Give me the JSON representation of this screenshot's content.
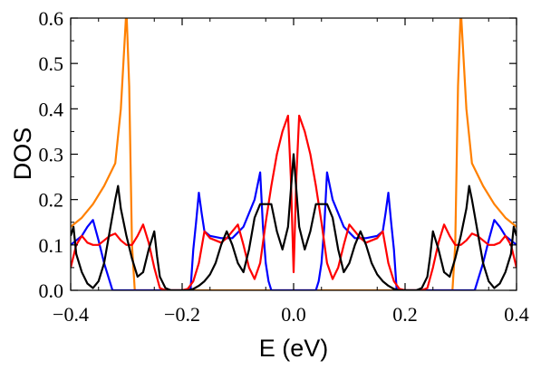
{
  "chart_data": {
    "type": "line",
    "xlabel": "E (eV)",
    "ylabel": "DOS",
    "xlim": [
      -0.4,
      0.4
    ],
    "ylim": [
      0.0,
      0.6
    ],
    "x_ticks": [
      -0.4,
      -0.2,
      0.0,
      0.2,
      0.4
    ],
    "x_tick_labels": [
      "−0.4",
      "−0.2",
      "0.0",
      "0.2",
      "0.4"
    ],
    "y_ticks": [
      0.0,
      0.1,
      0.2,
      0.3,
      0.4,
      0.5,
      0.6
    ],
    "y_tick_labels": [
      "0.0",
      "0.1",
      "0.2",
      "0.3",
      "0.4",
      "0.5",
      "0.6"
    ],
    "grid": false,
    "legend": "none",
    "series": [
      {
        "color": "#ff8000",
        "points": [
          [
            -0.4,
            0.14
          ],
          [
            -0.38,
            0.16
          ],
          [
            -0.36,
            0.19
          ],
          [
            -0.34,
            0.23
          ],
          [
            -0.32,
            0.28
          ],
          [
            -0.31,
            0.4
          ],
          [
            -0.3,
            0.62
          ],
          [
            -0.295,
            0.45
          ],
          [
            -0.29,
            0.1
          ],
          [
            -0.285,
            0.0
          ],
          [
            0.285,
            0.0
          ],
          [
            0.29,
            0.1
          ],
          [
            0.295,
            0.45
          ],
          [
            0.3,
            0.62
          ],
          [
            0.31,
            0.4
          ],
          [
            0.32,
            0.28
          ],
          [
            0.34,
            0.23
          ],
          [
            0.36,
            0.19
          ],
          [
            0.38,
            0.16
          ],
          [
            0.4,
            0.14
          ]
        ]
      },
      {
        "color": "#0000ff",
        "points": [
          [
            -0.4,
            0.1
          ],
          [
            -0.39,
            0.11
          ],
          [
            -0.38,
            0.12
          ],
          [
            -0.37,
            0.14
          ],
          [
            -0.36,
            0.155
          ],
          [
            -0.35,
            0.11
          ],
          [
            -0.34,
            0.06
          ],
          [
            -0.33,
            0.02
          ],
          [
            -0.325,
            0.0
          ],
          [
            -0.185,
            0.0
          ],
          [
            -0.18,
            0.09
          ],
          [
            -0.175,
            0.15
          ],
          [
            -0.17,
            0.215
          ],
          [
            -0.165,
            0.17
          ],
          [
            -0.16,
            0.13
          ],
          [
            -0.15,
            0.12
          ],
          [
            -0.13,
            0.115
          ],
          [
            -0.11,
            0.115
          ],
          [
            -0.09,
            0.14
          ],
          [
            -0.07,
            0.2
          ],
          [
            -0.06,
            0.26
          ],
          [
            -0.055,
            0.14
          ],
          [
            -0.05,
            0.06
          ],
          [
            -0.045,
            0.02
          ],
          [
            -0.04,
            0.0
          ],
          [
            0.04,
            0.0
          ],
          [
            0.045,
            0.02
          ],
          [
            0.05,
            0.06
          ],
          [
            0.055,
            0.14
          ],
          [
            0.06,
            0.26
          ],
          [
            0.07,
            0.2
          ],
          [
            0.09,
            0.14
          ],
          [
            0.11,
            0.115
          ],
          [
            0.13,
            0.115
          ],
          [
            0.15,
            0.12
          ],
          [
            0.16,
            0.13
          ],
          [
            0.165,
            0.17
          ],
          [
            0.17,
            0.215
          ],
          [
            0.175,
            0.15
          ],
          [
            0.18,
            0.09
          ],
          [
            0.185,
            0.0
          ],
          [
            0.325,
            0.0
          ],
          [
            0.33,
            0.02
          ],
          [
            0.34,
            0.06
          ],
          [
            0.35,
            0.11
          ],
          [
            0.36,
            0.155
          ],
          [
            0.37,
            0.14
          ],
          [
            0.38,
            0.12
          ],
          [
            0.39,
            0.11
          ],
          [
            0.4,
            0.1
          ]
        ]
      },
      {
        "color": "#ff0000",
        "points": [
          [
            -0.4,
            0.05
          ],
          [
            -0.39,
            0.1
          ],
          [
            -0.38,
            0.12
          ],
          [
            -0.37,
            0.105
          ],
          [
            -0.36,
            0.1
          ],
          [
            -0.35,
            0.1
          ],
          [
            -0.34,
            0.11
          ],
          [
            -0.33,
            0.12
          ],
          [
            -0.32,
            0.125
          ],
          [
            -0.31,
            0.11
          ],
          [
            -0.3,
            0.1
          ],
          [
            -0.29,
            0.1
          ],
          [
            -0.28,
            0.12
          ],
          [
            -0.27,
            0.145
          ],
          [
            -0.26,
            0.105
          ],
          [
            -0.25,
            0.05
          ],
          [
            -0.24,
            0.005
          ],
          [
            -0.23,
            0.0
          ],
          [
            -0.2,
            0.0
          ],
          [
            -0.19,
            0.003
          ],
          [
            -0.18,
            0.02
          ],
          [
            -0.17,
            0.06
          ],
          [
            -0.16,
            0.13
          ],
          [
            -0.15,
            0.115
          ],
          [
            -0.14,
            0.11
          ],
          [
            -0.13,
            0.105
          ],
          [
            -0.12,
            0.115
          ],
          [
            -0.11,
            0.13
          ],
          [
            -0.1,
            0.145
          ],
          [
            -0.09,
            0.1
          ],
          [
            -0.08,
            0.05
          ],
          [
            -0.07,
            0.025
          ],
          [
            -0.06,
            0.06
          ],
          [
            -0.05,
            0.15
          ],
          [
            -0.04,
            0.23
          ],
          [
            -0.03,
            0.3
          ],
          [
            -0.02,
            0.35
          ],
          [
            -0.01,
            0.385
          ],
          [
            -0.005,
            0.25
          ],
          [
            0.0,
            0.04
          ],
          [
            0.005,
            0.25
          ],
          [
            0.01,
            0.385
          ],
          [
            0.02,
            0.35
          ],
          [
            0.03,
            0.3
          ],
          [
            0.04,
            0.23
          ],
          [
            0.05,
            0.15
          ],
          [
            0.06,
            0.06
          ],
          [
            0.07,
            0.025
          ],
          [
            0.08,
            0.05
          ],
          [
            0.09,
            0.1
          ],
          [
            0.1,
            0.145
          ],
          [
            0.11,
            0.13
          ],
          [
            0.12,
            0.115
          ],
          [
            0.13,
            0.105
          ],
          [
            0.14,
            0.11
          ],
          [
            0.15,
            0.115
          ],
          [
            0.16,
            0.13
          ],
          [
            0.17,
            0.06
          ],
          [
            0.18,
            0.02
          ],
          [
            0.19,
            0.003
          ],
          [
            0.2,
            0.0
          ],
          [
            0.23,
            0.0
          ],
          [
            0.24,
            0.005
          ],
          [
            0.25,
            0.05
          ],
          [
            0.26,
            0.105
          ],
          [
            0.27,
            0.145
          ],
          [
            0.28,
            0.12
          ],
          [
            0.29,
            0.1
          ],
          [
            0.3,
            0.1
          ],
          [
            0.31,
            0.11
          ],
          [
            0.32,
            0.125
          ],
          [
            0.33,
            0.12
          ],
          [
            0.34,
            0.11
          ],
          [
            0.35,
            0.1
          ],
          [
            0.36,
            0.1
          ],
          [
            0.37,
            0.105
          ],
          [
            0.38,
            0.12
          ],
          [
            0.39,
            0.1
          ],
          [
            0.4,
            0.05
          ]
        ]
      },
      {
        "color": "#000000",
        "points": [
          [
            -0.4,
            0.12
          ],
          [
            -0.395,
            0.14
          ],
          [
            -0.39,
            0.08
          ],
          [
            -0.38,
            0.04
          ],
          [
            -0.37,
            0.015
          ],
          [
            -0.36,
            0.005
          ],
          [
            -0.35,
            0.02
          ],
          [
            -0.34,
            0.06
          ],
          [
            -0.33,
            0.13
          ],
          [
            -0.32,
            0.2
          ],
          [
            -0.315,
            0.23
          ],
          [
            -0.31,
            0.18
          ],
          [
            -0.3,
            0.12
          ],
          [
            -0.29,
            0.07
          ],
          [
            -0.28,
            0.03
          ],
          [
            -0.27,
            0.04
          ],
          [
            -0.26,
            0.09
          ],
          [
            -0.25,
            0.13
          ],
          [
            -0.245,
            0.075
          ],
          [
            -0.24,
            0.03
          ],
          [
            -0.23,
            0.005
          ],
          [
            -0.22,
            0.0
          ],
          [
            -0.19,
            0.0
          ],
          [
            -0.18,
            0.003
          ],
          [
            -0.17,
            0.01
          ],
          [
            -0.16,
            0.02
          ],
          [
            -0.15,
            0.035
          ],
          [
            -0.14,
            0.06
          ],
          [
            -0.13,
            0.1
          ],
          [
            -0.12,
            0.13
          ],
          [
            -0.11,
            0.1
          ],
          [
            -0.1,
            0.06
          ],
          [
            -0.09,
            0.04
          ],
          [
            -0.08,
            0.09
          ],
          [
            -0.07,
            0.16
          ],
          [
            -0.06,
            0.19
          ],
          [
            -0.05,
            0.19
          ],
          [
            -0.04,
            0.19
          ],
          [
            -0.03,
            0.13
          ],
          [
            -0.02,
            0.09
          ],
          [
            -0.01,
            0.14
          ],
          [
            -0.005,
            0.22
          ],
          [
            0.0,
            0.3
          ],
          [
            0.005,
            0.22
          ],
          [
            0.01,
            0.14
          ],
          [
            0.02,
            0.09
          ],
          [
            0.03,
            0.13
          ],
          [
            0.04,
            0.19
          ],
          [
            0.05,
            0.19
          ],
          [
            0.06,
            0.19
          ],
          [
            0.07,
            0.16
          ],
          [
            0.08,
            0.09
          ],
          [
            0.09,
            0.04
          ],
          [
            0.1,
            0.06
          ],
          [
            0.11,
            0.1
          ],
          [
            0.12,
            0.13
          ],
          [
            0.13,
            0.1
          ],
          [
            0.14,
            0.06
          ],
          [
            0.15,
            0.035
          ],
          [
            0.16,
            0.02
          ],
          [
            0.17,
            0.01
          ],
          [
            0.18,
            0.003
          ],
          [
            0.19,
            0.0
          ],
          [
            0.22,
            0.0
          ],
          [
            0.23,
            0.005
          ],
          [
            0.24,
            0.03
          ],
          [
            0.245,
            0.075
          ],
          [
            0.25,
            0.13
          ],
          [
            0.26,
            0.09
          ],
          [
            0.27,
            0.04
          ],
          [
            0.28,
            0.03
          ],
          [
            0.29,
            0.07
          ],
          [
            0.3,
            0.12
          ],
          [
            0.31,
            0.18
          ],
          [
            0.315,
            0.23
          ],
          [
            0.32,
            0.2
          ],
          [
            0.33,
            0.13
          ],
          [
            0.34,
            0.06
          ],
          [
            0.35,
            0.02
          ],
          [
            0.36,
            0.005
          ],
          [
            0.37,
            0.015
          ],
          [
            0.38,
            0.04
          ],
          [
            0.39,
            0.08
          ],
          [
            0.395,
            0.14
          ],
          [
            0.4,
            0.12
          ]
        ]
      }
    ]
  }
}
